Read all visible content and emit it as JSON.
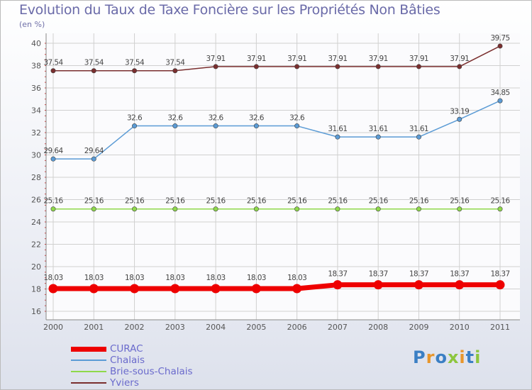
{
  "title": "Evolution du Taux de Taxe Foncière sur les Propriétés Non Bâties",
  "unit_label": "(en %)",
  "logo": {
    "text": "Proxiti",
    "colors": [
      "#3b7fc4",
      "#e8962b",
      "#3b7fc4",
      "#8dc63f",
      "#e8962b",
      "#3b7fc4",
      "#8dc63f"
    ]
  },
  "chart_data": {
    "type": "line",
    "title": "Evolution du Taux de Taxe Foncière sur les Propriétés Non Bâties",
    "ylabel": "(en %)",
    "xlabel": "",
    "ylim": [
      16,
      40
    ],
    "yticks": [
      16,
      18,
      20,
      22,
      24,
      26,
      28,
      30,
      32,
      34,
      36,
      38,
      40
    ],
    "grid": true,
    "legend_position": "bottom-left",
    "categories": [
      "2000",
      "2001",
      "2002",
      "2003",
      "2004",
      "2005",
      "2006",
      "2007",
      "2008",
      "2009",
      "2010",
      "2011"
    ],
    "series": [
      {
        "name": "CURAC",
        "color": "#ee0000",
        "values": [
          18.03,
          18.03,
          18.03,
          18.03,
          18.03,
          18.03,
          18.03,
          18.37,
          18.37,
          18.37,
          18.37,
          18.37
        ],
        "labels": [
          "18.03",
          "18.03",
          "18.03",
          "18.03",
          "18.03",
          "18.03",
          "18.03",
          "18.37",
          "18.37",
          "18.37",
          "18.37",
          "18.37"
        ]
      },
      {
        "name": "Chalais",
        "color": "#5b9bd5",
        "values": [
          29.64,
          29.64,
          32.6,
          32.6,
          32.6,
          32.6,
          32.6,
          31.61,
          31.61,
          31.61,
          33.19,
          34.85
        ],
        "labels": [
          "29.64",
          "29.64",
          "32.6",
          "32.6",
          "32.6",
          "32.6",
          "32.6",
          "31.61",
          "31.61",
          "31.61",
          "33.19",
          "34.85"
        ]
      },
      {
        "name": "Brie-sous-Chalais",
        "color": "#8fd94a",
        "values": [
          25.16,
          25.16,
          25.16,
          25.16,
          25.16,
          25.16,
          25.16,
          25.16,
          25.16,
          25.16,
          25.16,
          25.16
        ],
        "labels": [
          "25.16",
          "25.16",
          "25.16",
          "25.16",
          "25.16",
          "25.16",
          "25.16",
          "25.16",
          "25.16",
          "25.16",
          "25.16",
          "25.16"
        ]
      },
      {
        "name": "Yviers",
        "color": "#7a2e2e",
        "values": [
          37.54,
          37.54,
          37.54,
          37.54,
          37.91,
          37.91,
          37.91,
          37.91,
          37.91,
          37.91,
          37.91,
          39.75
        ],
        "labels": [
          "37.54",
          "37.54",
          "37.54",
          "37.54",
          "37.91",
          "37.91",
          "37.91",
          "37.91",
          "37.91",
          "37.91",
          "37.91",
          "39.75"
        ]
      }
    ]
  }
}
